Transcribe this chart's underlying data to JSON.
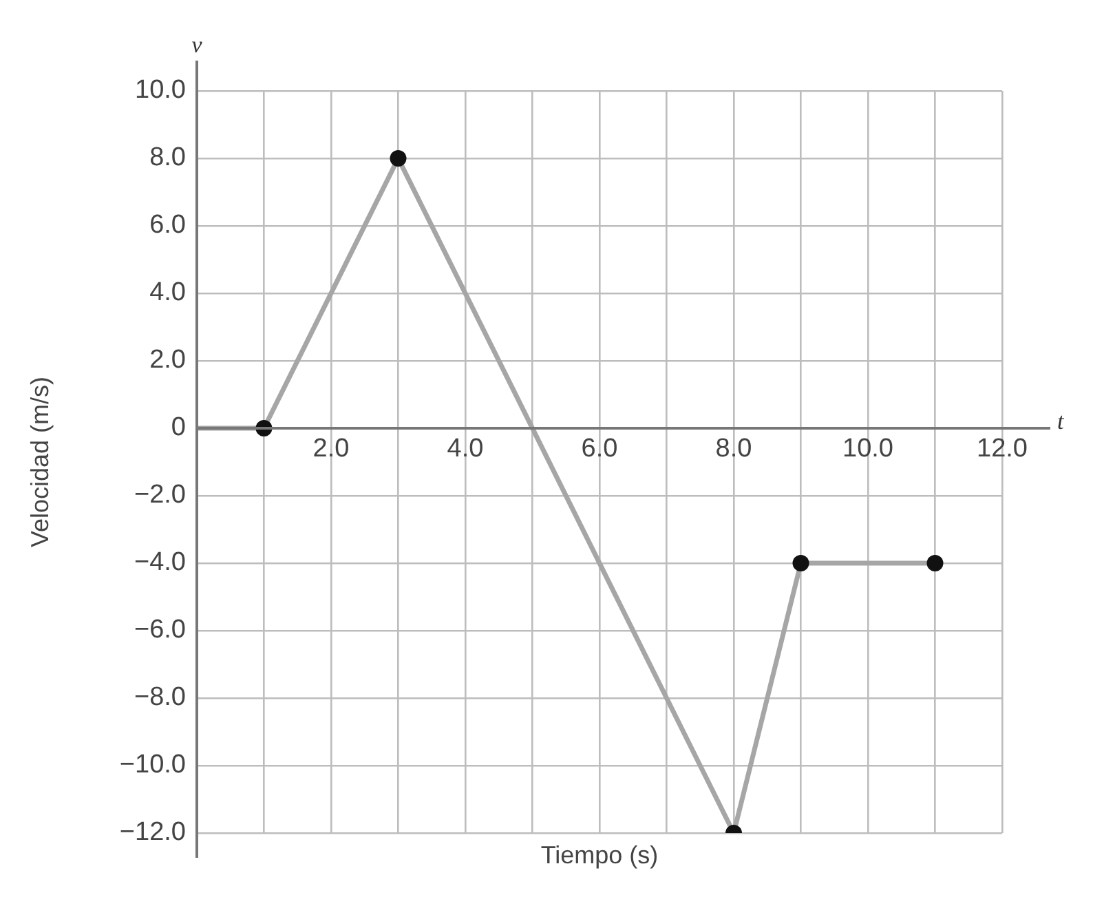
{
  "chart_data": {
    "type": "line",
    "xlabel": "Tiempo (s)",
    "ylabel": "Velocidad (m/s)",
    "annotations": [
      "v",
      "t"
    ],
    "xlim": [
      0,
      12
    ],
    "ylim": [
      -12,
      10
    ],
    "xticks": [
      {
        "value": 1,
        "label": null
      },
      {
        "value": 2,
        "label": "2.0"
      },
      {
        "value": 3,
        "label": null
      },
      {
        "value": 4,
        "label": "4.0"
      },
      {
        "value": 5,
        "label": null
      },
      {
        "value": 6,
        "label": "6.0"
      },
      {
        "value": 7,
        "label": null
      },
      {
        "value": 8,
        "label": "8.0"
      },
      {
        "value": 9,
        "label": null
      },
      {
        "value": 10,
        "label": "10.0"
      },
      {
        "value": 11,
        "label": null
      },
      {
        "value": 12,
        "label": "12.0"
      }
    ],
    "yticks": [
      {
        "value": -12,
        "label": "−12.0"
      },
      {
        "value": -10,
        "label": "−10.0"
      },
      {
        "value": -8,
        "label": "−8.0"
      },
      {
        "value": -6,
        "label": "−6.0"
      },
      {
        "value": -4,
        "label": "−4.0"
      },
      {
        "value": -2,
        "label": "−2.0"
      },
      0,
      {
        "value": 2,
        "label": "2.0"
      },
      {
        "value": 4,
        "label": "4.0"
      },
      {
        "value": 6,
        "label": "6.0"
      },
      {
        "value": 8,
        "label": "8.0"
      },
      {
        "value": 10,
        "label": "10.0"
      }
    ],
    "grid": true,
    "legend": false,
    "series": [
      {
        "type": "line",
        "color": "#a6a6a6",
        "marker": "none",
        "x": [
          0,
          1,
          3,
          8,
          9,
          11
        ],
        "values": [
          0,
          0,
          8,
          -12,
          -4,
          -4
        ]
      },
      {
        "type": "scatter",
        "color": "#111111",
        "marker": "circle",
        "x": [
          1,
          3,
          8,
          9,
          11
        ],
        "values": [
          0,
          8,
          -12,
          -4,
          -4
        ]
      }
    ]
  }
}
